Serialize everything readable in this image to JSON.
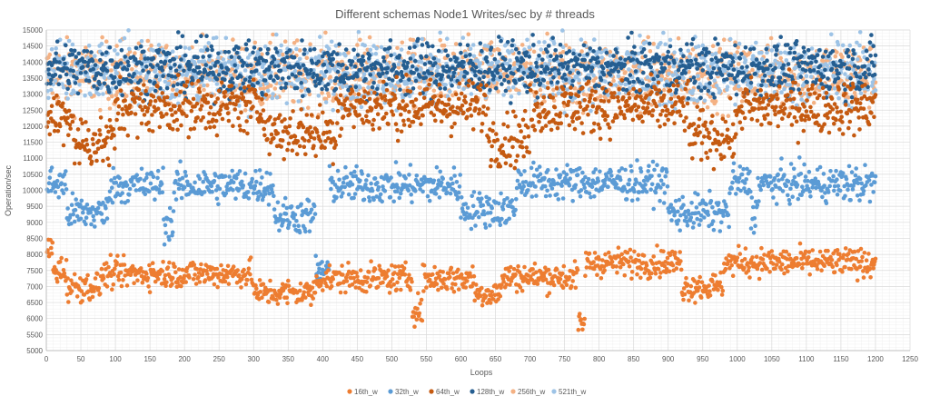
{
  "chart_data": {
    "type": "scatter",
    "title": "Different schemas Node1 Writes/sec by # threads",
    "xlabel": "Loops",
    "ylabel": "Operation/sec",
    "xlim": [
      0,
      1250
    ],
    "ylim": [
      5000,
      15000
    ],
    "x_ticks": [
      0,
      50,
      100,
      150,
      200,
      250,
      300,
      350,
      400,
      450,
      500,
      550,
      600,
      650,
      700,
      750,
      800,
      850,
      900,
      950,
      1000,
      1050,
      1100,
      1150,
      1200,
      1250
    ],
    "y_ticks": [
      5000,
      5500,
      6000,
      6500,
      7000,
      7500,
      8000,
      8500,
      9000,
      9500,
      10000,
      10500,
      11000,
      11500,
      12000,
      12500,
      13000,
      13500,
      14000,
      14500,
      15000
    ],
    "grid": true,
    "legend_position": "bottom",
    "n_points_per_series": 1200,
    "series": [
      {
        "name": "16th_w",
        "color": "#ED7D31",
        "typical_value": 7400,
        "segments": [
          {
            "x": [
              0,
              10
            ],
            "level": 8150
          },
          {
            "x": [
              10,
              30
            ],
            "level": 7500
          },
          {
            "x": [
              30,
              80
            ],
            "level": 7000
          },
          {
            "x": [
              80,
              300
            ],
            "level": 7400
          },
          {
            "x": [
              300,
              390
            ],
            "level": 6800
          },
          {
            "x": [
              390,
              530
            ],
            "level": 7250
          },
          {
            "x": [
              530,
              545
            ],
            "level": 6300
          },
          {
            "x": [
              545,
              620
            ],
            "level": 7250
          },
          {
            "x": [
              620,
              660
            ],
            "level": 6800
          },
          {
            "x": [
              660,
              770
            ],
            "level": 7300
          },
          {
            "x": [
              770,
              780
            ],
            "level": 5800
          },
          {
            "x": [
              780,
              920
            ],
            "level": 7750
          },
          {
            "x": [
              920,
              980
            ],
            "level": 7000
          },
          {
            "x": [
              980,
              1200
            ],
            "level": 7750
          }
        ]
      },
      {
        "name": "32th_w",
        "color": "#5B9BD5",
        "typical_value": 10200,
        "segments": [
          {
            "x": [
              0,
              30
            ],
            "level": 10200
          },
          {
            "x": [
              30,
              90
            ],
            "level": 9300
          },
          {
            "x": [
              90,
              170
            ],
            "level": 10150
          },
          {
            "x": [
              170,
              185
            ],
            "level": 9000
          },
          {
            "x": [
              185,
              330
            ],
            "level": 10150
          },
          {
            "x": [
              330,
              390
            ],
            "level": 9200
          },
          {
            "x": [
              390,
              410
            ],
            "level": 7500
          },
          {
            "x": [
              410,
              600
            ],
            "level": 10150
          },
          {
            "x": [
              600,
              680
            ],
            "level": 9400
          },
          {
            "x": [
              680,
              900
            ],
            "level": 10250
          },
          {
            "x": [
              900,
              990
            ],
            "level": 9300
          },
          {
            "x": [
              990,
              1020
            ],
            "level": 10250
          },
          {
            "x": [
              1020,
              1030
            ],
            "level": 9300
          },
          {
            "x": [
              1030,
              1200
            ],
            "level": 10200
          }
        ]
      },
      {
        "name": "64th_w",
        "color": "#C55A11",
        "typical_value": 12600,
        "segments": [
          {
            "x": [
              0,
              40
            ],
            "level": 12300
          },
          {
            "x": [
              40,
              100
            ],
            "level": 11500
          },
          {
            "x": [
              100,
              320
            ],
            "level": 12600
          },
          {
            "x": [
              320,
              420
            ],
            "level": 11800
          },
          {
            "x": [
              420,
              640
            ],
            "level": 12600
          },
          {
            "x": [
              640,
              700
            ],
            "level": 11600
          },
          {
            "x": [
              700,
              930
            ],
            "level": 12600
          },
          {
            "x": [
              930,
              1000
            ],
            "level": 11700
          },
          {
            "x": [
              1000,
              1200
            ],
            "level": 12600
          }
        ]
      },
      {
        "name": "128th_w",
        "color": "#255E91",
        "typical_value": 13800,
        "segments": [
          {
            "x": [
              0,
              1200
            ],
            "level": 13800
          }
        ]
      },
      {
        "name": "256th_w",
        "color": "#F4B183",
        "typical_value": 13600,
        "segments": [
          {
            "x": [
              0,
              1200
            ],
            "level": 13600
          }
        ]
      },
      {
        "name": "521th_w",
        "color": "#9DC3E6",
        "typical_value": 13700,
        "segments": [
          {
            "x": [
              0,
              1200
            ],
            "level": 13700
          }
        ]
      }
    ]
  }
}
